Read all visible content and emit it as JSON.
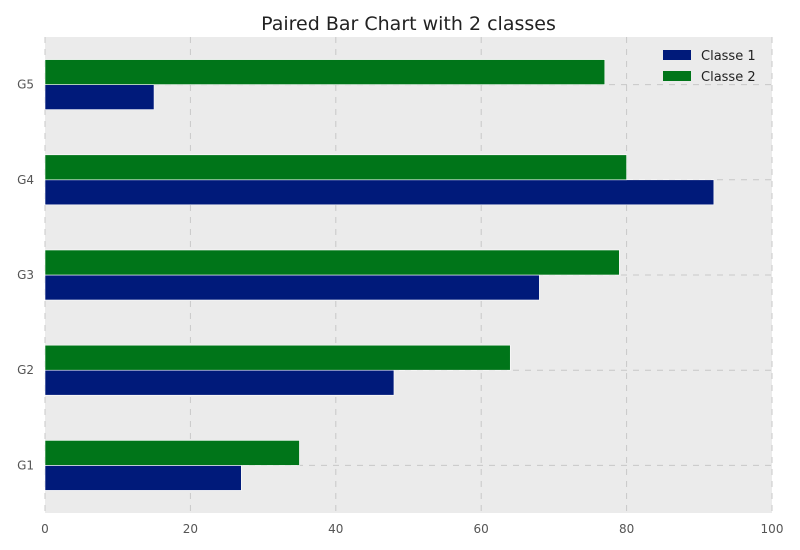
{
  "chart_data": {
    "type": "bar",
    "orientation": "horizontal",
    "title": "Paired Bar Chart with 2 classes",
    "xlabel": "",
    "ylabel": "",
    "categories": [
      "G1",
      "G2",
      "G3",
      "G4",
      "G5"
    ],
    "series": [
      {
        "name": "Classe 1",
        "values": [
          27,
          48,
          68,
          92,
          15
        ],
        "color": "#001a7a"
      },
      {
        "name": "Classe 2",
        "values": [
          35,
          64,
          79,
          80,
          77
        ],
        "color": "#007519"
      }
    ],
    "xlim": [
      0,
      100
    ],
    "xticks": [
      "0",
      "20",
      "40",
      "60",
      "80",
      "100"
    ],
    "grid": true,
    "legend_position": "top-right",
    "background_color": "#ebebeb"
  }
}
